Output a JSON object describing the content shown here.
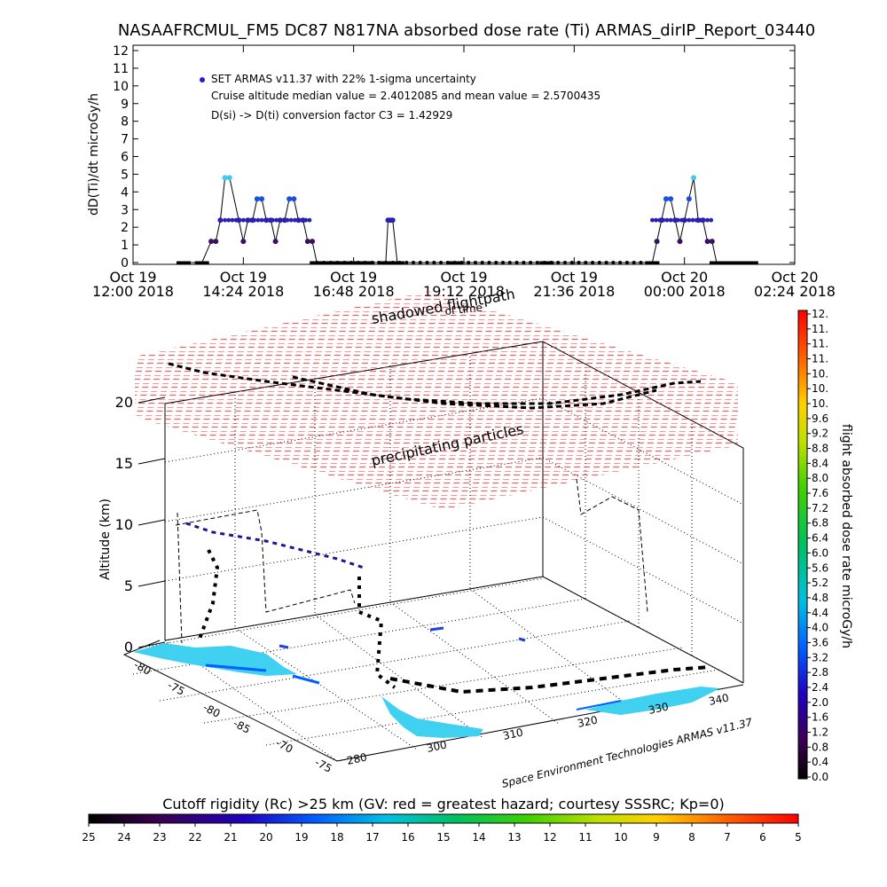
{
  "title": "NASAAFRCMUL_FM5 DC87 N817NA absorbed dose rate (Ti) ARMAS_dirIP_Report_03440",
  "chart_data": [
    {
      "type": "line",
      "ylabel": "dD(Ti)/dt microGy/h",
      "ylim": [
        0,
        12
      ],
      "yticks": [
        "0",
        "1",
        "2",
        "3",
        "4",
        "5",
        "6",
        "7",
        "8",
        "9",
        "10",
        "11",
        "12"
      ],
      "xticks": [
        {
          "l1": "Oct 19",
          "l2": "12:00 2018"
        },
        {
          "l1": "Oct 19",
          "l2": "14:24 2018"
        },
        {
          "l1": "Oct 19",
          "l2": "16:48 2018"
        },
        {
          "l1": "Oct 19",
          "l2": "19:12 2018"
        },
        {
          "l1": "Oct 19",
          "l2": "21:36 2018"
        },
        {
          "l1": "Oct 20",
          "l2": "00:00 2018"
        },
        {
          "l1": "Oct 20",
          "l2": "02:24 2018"
        }
      ],
      "x_hours_from_start": [
        1.1,
        1.5,
        1.7,
        1.8,
        1.9,
        2.0,
        2.1,
        2.3,
        2.4,
        2.5,
        2.6,
        2.7,
        2.8,
        2.9,
        3.0,
        3.1,
        3.2,
        3.3,
        3.4,
        3.5,
        3.6,
        3.7,
        3.8,
        3.9,
        4.0,
        4.1,
        4.3,
        4.45,
        4.6,
        4.9,
        5.1,
        5.5,
        5.55,
        5.6,
        5.65,
        5.75,
        7.0,
        9.0,
        11.3,
        11.4,
        11.5,
        11.6,
        11.7,
        11.8,
        11.9,
        12.0,
        12.1,
        12.2,
        12.3,
        12.4,
        12.5,
        12.6,
        12.7,
        12.8,
        12.9,
        13.0,
        13.2,
        13.45
      ],
      "values": [
        0,
        0,
        1.2,
        1.2,
        2.4,
        4.8,
        4.8,
        2.4,
        1.2,
        2.4,
        2.4,
        3.6,
        3.6,
        2.4,
        2.4,
        1.2,
        2.4,
        2.4,
        3.6,
        3.6,
        2.4,
        2.4,
        1.2,
        1.2,
        0,
        0,
        0,
        0,
        0,
        0,
        0,
        0,
        2.4,
        2.4,
        2.4,
        0,
        0,
        0,
        0,
        1.2,
        2.4,
        3.6,
        3.6,
        2.4,
        1.2,
        2.4,
        3.6,
        4.8,
        2.4,
        2.4,
        1.2,
        1.2,
        0,
        0,
        0,
        0,
        0,
        0
      ],
      "legend": "SET ARMAS v11.37 with 22% 1-sigma uncertainty",
      "annotations": [
        "Cruise altitude median value = 2.4012085 and mean value = 2.5700435",
        "D(si) -> D(ti) conversion factor C3 = 1.42929"
      ]
    },
    {
      "type": "scatter",
      "zlabel": "Altitude (km)",
      "zticks": [
        "0",
        "5",
        "10",
        "15",
        "20"
      ],
      "lat_ticks": [
        "-80",
        "-75",
        "-80",
        "-85",
        "-70",
        "-75"
      ],
      "lon_ticks": [
        "280",
        "300",
        "310",
        "320",
        "330",
        "340"
      ],
      "labels": [
        "shadowed flightpath",
        "of time",
        "precipitating particles"
      ],
      "credit": "Space Environment Technologies ARMAS v11.37"
    },
    {
      "type": "heatmap",
      "label": "flight absorbed dose rate microGy/h",
      "ticks": [
        "12.",
        "11.",
        "11.",
        "11.",
        "10.",
        "10.",
        "10.",
        "9.6",
        "9.2",
        "8.8",
        "8.4",
        "8.0",
        "7.6",
        "7.2",
        "6.8",
        "6.4",
        "6.0",
        "5.6",
        "5.2",
        "4.8",
        "4.4",
        "4.0",
        "3.6",
        "3.2",
        "2.8",
        "2.4",
        "2.0",
        "1.6",
        "1.2",
        "0.8",
        "0.4",
        "0.0"
      ]
    },
    {
      "type": "heatmap",
      "label": "Cutoff rigidity (Rc) >25 km (GV: red = greatest hazard; courtesy SSSRC; Kp=0)",
      "ticks": [
        "25",
        "24",
        "23",
        "22",
        "21",
        "20",
        "19",
        "18",
        "17",
        "16",
        "15",
        "14",
        "13",
        "12",
        "11",
        "10",
        "9",
        "8",
        "7",
        "6",
        "5"
      ]
    }
  ]
}
